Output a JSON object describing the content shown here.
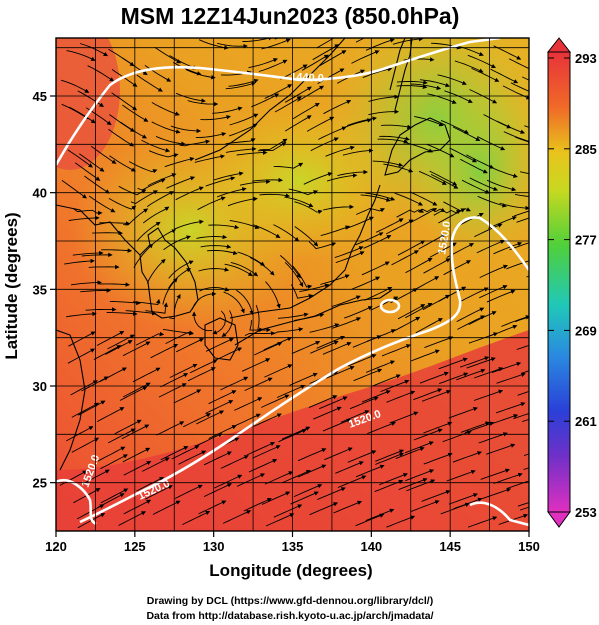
{
  "title": "MSM 12Z14Jun2023 (850.0hPa)",
  "x_axis": {
    "label": "Longitude (degrees)",
    "range": [
      120,
      150
    ],
    "ticks": [
      "120",
      "125",
      "130",
      "135",
      "140",
      "145",
      "150"
    ]
  },
  "y_axis": {
    "label": "Latitude  (degrees)",
    "range": [
      22.5,
      48
    ],
    "ticks": [
      "25",
      "30",
      "35",
      "40",
      "45"
    ]
  },
  "colorbar": {
    "ticks": [
      "293",
      "285",
      "277",
      "269",
      "261",
      "253"
    ],
    "range": [
      253,
      293
    ]
  },
  "contour_labels": [
    "1440.0",
    "1520.0",
    "1520.0",
    "1520.0",
    "1520.0"
  ],
  "credits": {
    "line1": "Drawing by DCL (https://www.gfd-dennou.org/library/dcl/)",
    "line2": "Data from http://database.rish.kyoto-u.ac.jp/arch/jmadata/"
  },
  "colors": {
    "warm_red": "#e8453a",
    "orange": "#f07a28",
    "yellow": "#e0c81c",
    "green": "#8ad02a",
    "contour": "#ffffff",
    "vectors": "#000000"
  }
}
